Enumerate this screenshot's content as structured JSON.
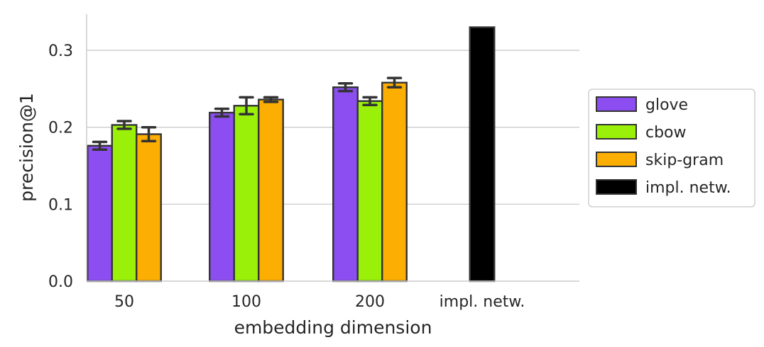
{
  "chart_data": {
    "type": "bar",
    "title": "",
    "xlabel": "embedding dimension",
    "ylabel": "precision@1",
    "categories": [
      "50",
      "100",
      "200",
      "impl. netw."
    ],
    "ylim": [
      0,
      0.347
    ],
    "yticks": [
      "0.0",
      "0.1",
      "0.2",
      "0.3"
    ],
    "grid": "horizontal",
    "legend_placement": "right",
    "series": [
      {
        "name": "glove",
        "color": "#8c4ef0",
        "values": [
          0.176,
          0.219,
          0.252,
          null
        ],
        "errors": [
          0.005,
          0.005,
          0.005,
          null
        ]
      },
      {
        "name": "cbow",
        "color": "#9af009",
        "values": [
          0.203,
          0.228,
          0.234,
          null
        ],
        "errors": [
          0.005,
          0.011,
          0.005,
          null
        ]
      },
      {
        "name": "skip-gram",
        "color": "#fcae02",
        "values": [
          0.191,
          0.236,
          0.258,
          null
        ],
        "errors": [
          0.009,
          0.003,
          0.006,
          null
        ]
      },
      {
        "name": "impl. netw.",
        "color": "#000000",
        "values": [
          null,
          null,
          null,
          0.33
        ],
        "errors": [
          null,
          null,
          null,
          null
        ]
      }
    ]
  }
}
